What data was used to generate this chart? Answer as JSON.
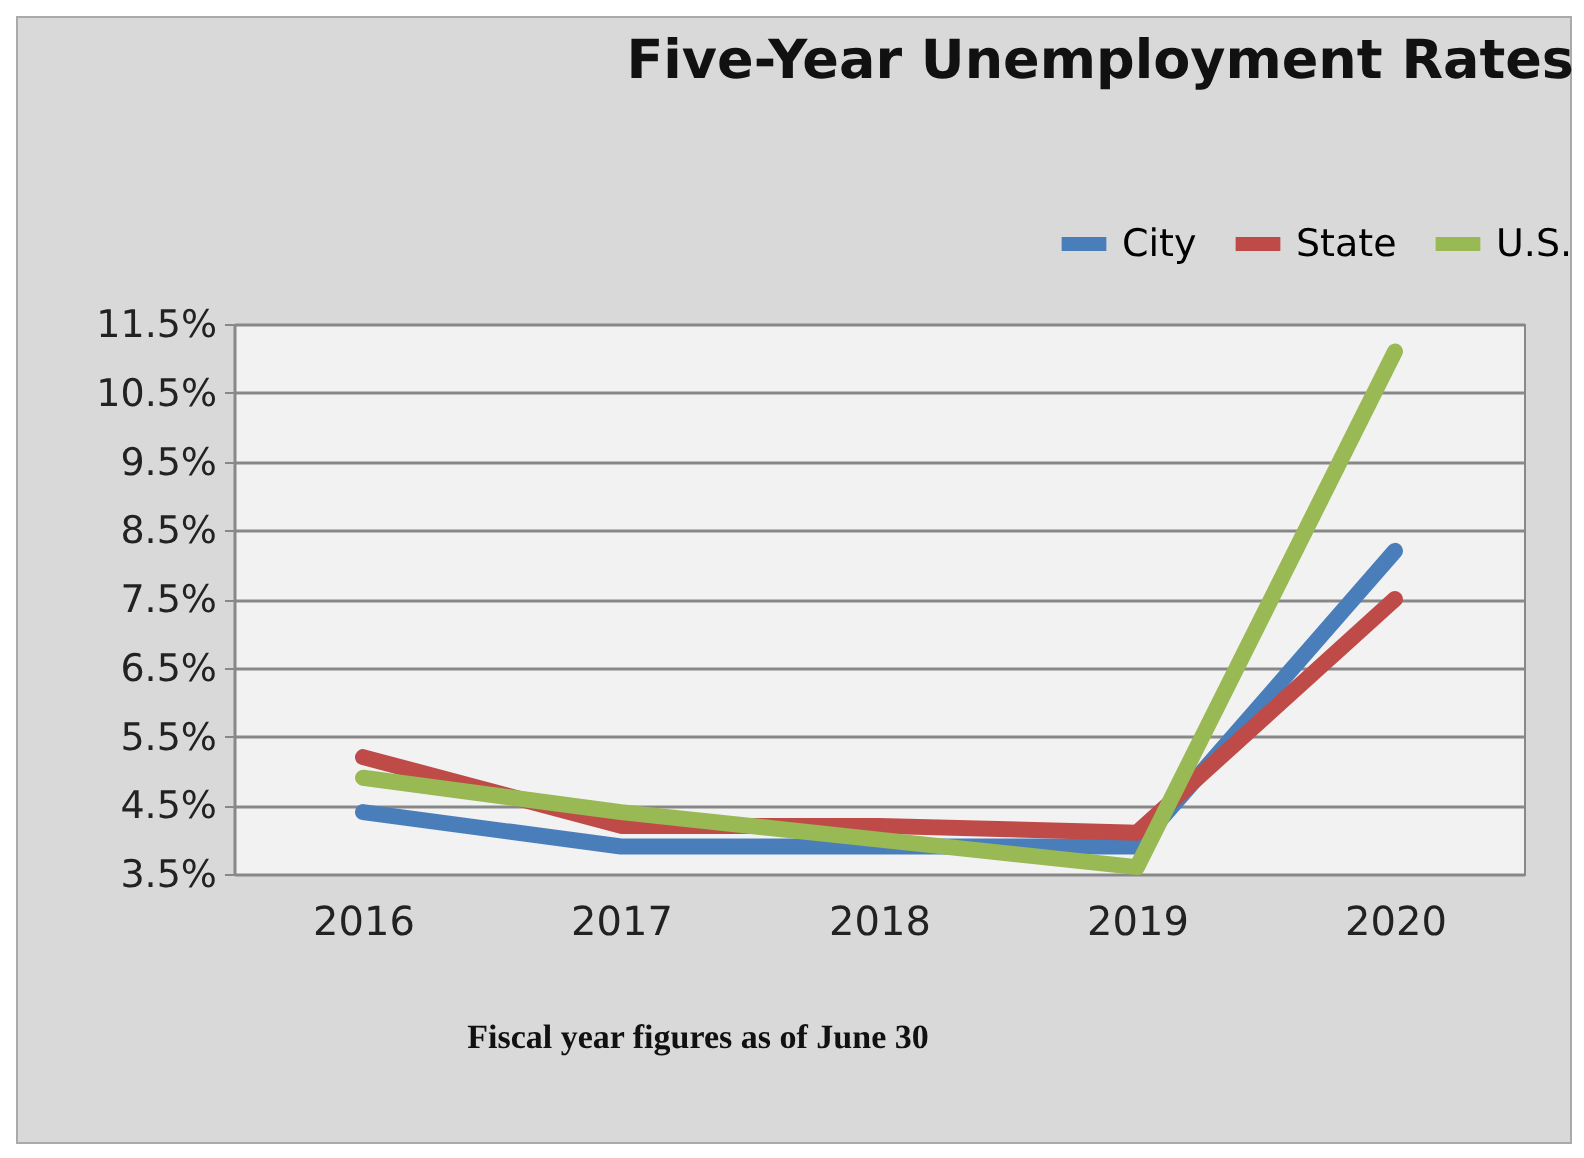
{
  "chart_data": {
    "type": "line",
    "title": "Five-Year Unemployment Rates",
    "categories": [
      "2016",
      "2017",
      "2018",
      "2019",
      "2020"
    ],
    "series": [
      {
        "name": "City",
        "color": "#4a7ebb",
        "values": [
          4.4,
          3.9,
          3.9,
          3.9,
          8.2
        ]
      },
      {
        "name": "State",
        "color": "#be4b48",
        "values": [
          5.2,
          4.2,
          4.2,
          4.1,
          7.5
        ]
      },
      {
        "name": "U.S.",
        "color": "#98b954",
        "values": [
          4.9,
          4.4,
          4.0,
          3.6,
          11.1
        ]
      }
    ],
    "ylim": [
      3.5,
      11.5
    ],
    "yticks": [
      {
        "value": 3.5,
        "label": "3.5%"
      },
      {
        "value": 4.5,
        "label": "4.5%"
      },
      {
        "value": 5.5,
        "label": "5.5%"
      },
      {
        "value": 6.5,
        "label": "6.5%"
      },
      {
        "value": 7.5,
        "label": "7.5%"
      },
      {
        "value": 8.5,
        "label": "8.5%"
      },
      {
        "value": 9.5,
        "label": "9.5%"
      },
      {
        "value": 10.5,
        "label": "10.5%"
      },
      {
        "value": 11.5,
        "label": "11.5%"
      }
    ],
    "grid": "y",
    "legend": "top right",
    "marker": "none",
    "line_style": "solid",
    "annotations": [
      "Fiscal year figures as of June 30"
    ]
  }
}
